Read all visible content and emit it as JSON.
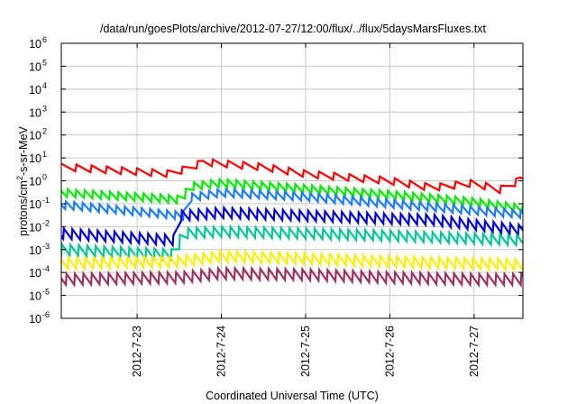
{
  "chart_data": {
    "type": "line",
    "title": "/data/run/goesPlots/archive/2012-07-27/12:00/flux/../flux/5daysMarsFluxes.txt",
    "xlabel": "Coordinated Universal Time (UTC)",
    "ylabel": {
      "prefix": "protons/cm",
      "sup": "2",
      "suffix": "-s-sr-MeV"
    },
    "x_range_days": [
      22.1,
      27.58
    ],
    "x_ticks": [
      {
        "day": 23,
        "label": "2012-7-23"
      },
      {
        "day": 24,
        "label": "2012-7-24"
      },
      {
        "day": 25,
        "label": "2012-7-25"
      },
      {
        "day": 26,
        "label": "2012-7-26"
      },
      {
        "day": 27,
        "label": "2012-7-27"
      }
    ],
    "y_scale": "log",
    "ylim": [
      1e-06,
      1000000.0
    ],
    "y_ticks": [
      {
        "exp": -6,
        "label": "10",
        "sup": "-6"
      },
      {
        "exp": -5,
        "label": "10",
        "sup": "-5"
      },
      {
        "exp": -4,
        "label": "10",
        "sup": "-4"
      },
      {
        "exp": -3,
        "label": "10",
        "sup": "-3"
      },
      {
        "exp": -2,
        "label": "10",
        "sup": "-2"
      },
      {
        "exp": -1,
        "label": "10",
        "sup": "-1"
      },
      {
        "exp": 0,
        "label": "10",
        "sup": "0"
      },
      {
        "exp": 1,
        "label": "10",
        "sup": "1"
      },
      {
        "exp": 2,
        "label": "10",
        "sup": "2"
      },
      {
        "exp": 3,
        "label": "10",
        "sup": "3"
      },
      {
        "exp": 4,
        "label": "10",
        "sup": "4"
      },
      {
        "exp": 5,
        "label": "10",
        "sup": "5"
      },
      {
        "exp": 6,
        "label": "10",
        "sup": "6"
      }
    ],
    "grid": true,
    "legend": "none",
    "series": [
      {
        "color": "#ff0000",
        "anchors": [
          [
            22.1,
            4.0
          ],
          [
            23.0,
            2.5
          ],
          [
            23.4,
            2.0
          ],
          [
            23.6,
            3.5
          ],
          [
            23.8,
            6.5
          ],
          [
            24.5,
            4.0
          ],
          [
            25.0,
            2.0
          ],
          [
            26.0,
            1.0
          ],
          [
            26.5,
            0.5
          ],
          [
            27.0,
            0.8
          ],
          [
            27.3,
            0.4
          ],
          [
            27.58,
            1.2
          ]
        ],
        "sawtooth": {
          "period": 0.18,
          "amp": 2.0
        },
        "spikes": [
          [
            23.78,
            7.5
          ],
          [
            27.55,
            1.4
          ]
        ]
      },
      {
        "color": "#00ee00",
        "anchors": [
          [
            22.1,
            0.3
          ],
          [
            23.55,
            0.15
          ],
          [
            23.6,
            0.55
          ],
          [
            24.0,
            0.8
          ],
          [
            25.0,
            0.45
          ],
          [
            26.0,
            0.25
          ],
          [
            27.0,
            0.12
          ],
          [
            27.58,
            0.06
          ]
        ],
        "sawtooth": {
          "period": 0.1,
          "amp": 2.2
        }
      },
      {
        "color": "#1c7cff",
        "anchors": [
          [
            22.1,
            0.09
          ],
          [
            23.55,
            0.03
          ],
          [
            23.6,
            0.18
          ],
          [
            24.0,
            0.3
          ],
          [
            25.0,
            0.2
          ],
          [
            26.0,
            0.1
          ],
          [
            27.0,
            0.05
          ],
          [
            27.58,
            0.035
          ]
        ],
        "sawtooth": {
          "period": 0.1,
          "amp": 2.2
        }
      },
      {
        "color": "#0000dd",
        "anchors": [
          [
            22.1,
            0.005
          ],
          [
            23.48,
            0.0025
          ],
          [
            23.52,
            0.03
          ],
          [
            24.0,
            0.04
          ],
          [
            25.0,
            0.03
          ],
          [
            26.0,
            0.022
          ],
          [
            26.5,
            0.02
          ],
          [
            27.0,
            0.012
          ],
          [
            27.58,
            0.007
          ]
        ],
        "sawtooth": {
          "period": 0.1,
          "amp": 2.8
        }
      },
      {
        "color": "#00c896",
        "anchors": [
          [
            22.1,
            0.001
          ],
          [
            23.48,
            0.0006
          ],
          [
            23.52,
            0.005
          ],
          [
            24.0,
            0.006
          ],
          [
            25.0,
            0.005
          ],
          [
            26.0,
            0.004
          ],
          [
            27.0,
            0.003
          ],
          [
            27.58,
            0.0025
          ]
        ],
        "sawtooth": {
          "period": 0.1,
          "amp": 2.8
        }
      },
      {
        "color": "#ffee00",
        "anchors": [
          [
            22.1,
            0.00025
          ],
          [
            23.5,
            0.0003
          ],
          [
            24.0,
            0.0005
          ],
          [
            25.0,
            0.0004
          ],
          [
            26.0,
            0.0003
          ],
          [
            27.0,
            0.00025
          ],
          [
            27.58,
            0.00022
          ]
        ],
        "sawtooth": {
          "period": 0.1,
          "amp": 3.0
        }
      },
      {
        "color": "#a03060",
        "anchors": [
          [
            22.1,
            5e-05
          ],
          [
            23.5,
            6e-05
          ],
          [
            24.0,
            9e-05
          ],
          [
            25.0,
            8e-05
          ],
          [
            26.0,
            6e-05
          ],
          [
            27.0,
            5e-05
          ],
          [
            27.58,
            5e-05
          ]
        ],
        "sawtooth": {
          "period": 0.1,
          "amp": 3.0
        }
      }
    ]
  }
}
